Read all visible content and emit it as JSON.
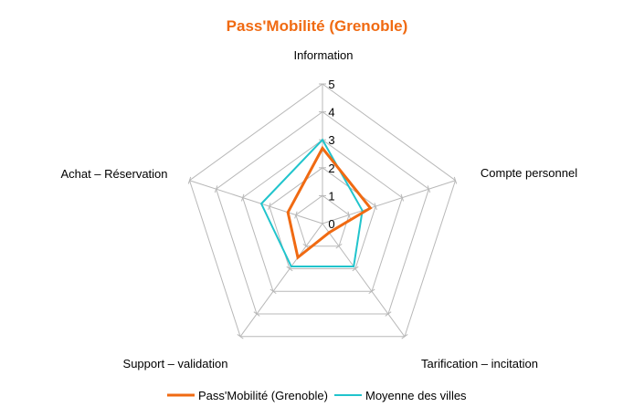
{
  "chart_data": {
    "type": "radar",
    "title": "Pass'Mobilité (Grenoble)",
    "categories": [
      "Information",
      "Compte personnel",
      "Tarification – incitation",
      "Support – validation",
      "Achat – Réservation"
    ],
    "ticks": [
      "0",
      "1",
      "2",
      "3",
      "4",
      "5"
    ],
    "range": [
      0,
      5
    ],
    "grid": true,
    "legend_position": "bottom",
    "series": [
      {
        "name": "Pass'Mobilité (Grenoble)",
        "values": [
          2.7,
          1.8,
          0.4,
          1.5,
          1.3
        ]
      },
      {
        "name": "Moyenne des villes",
        "values": [
          3.0,
          1.5,
          1.9,
          1.9,
          2.3
        ]
      }
    ],
    "colors": {
      "title": "#f06a12",
      "grid": "#b8b8b8",
      "series": [
        "#f06a12",
        "#21c4cc"
      ]
    }
  }
}
